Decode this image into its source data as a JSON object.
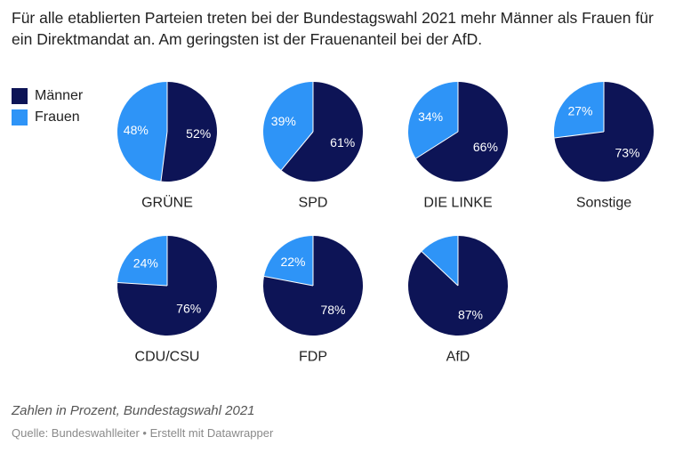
{
  "title": "Für alle etablierten Parteien treten bei der Bundestagswahl 2021 mehr Männer als Frauen für ein Direktmandat an. Am geringsten ist der Frauenanteil bei der AfD.",
  "legend": [
    {
      "label": "Männer",
      "color": "#0d1456"
    },
    {
      "label": "Frauen",
      "color": "#2e94f7"
    }
  ],
  "chart_data": {
    "type": "pie",
    "series_names": [
      "Männer",
      "Frauen"
    ],
    "colors": {
      "men": "#0d1456",
      "women": "#2e94f7"
    },
    "value_suffix": "%",
    "charts": [
      {
        "name": "GRÜNE",
        "men": 52,
        "women": 48
      },
      {
        "name": "SPD",
        "men": 61,
        "women": 39
      },
      {
        "name": "DIE LINKE",
        "men": 66,
        "women": 34
      },
      {
        "name": "Sonstige",
        "men": 73,
        "women": 27
      },
      {
        "name": "CDU/CSU",
        "men": 76,
        "women": 24
      },
      {
        "name": "FDP",
        "men": 78,
        "women": 22
      },
      {
        "name": "AfD",
        "men": 87,
        "women": 13,
        "women_label_shown": false
      }
    ]
  },
  "footer": {
    "note": "Zahlen in Prozent, Bundestagswahl 2021",
    "source": "Quelle: Bundeswahlleiter • Erstellt mit Datawrapper"
  }
}
